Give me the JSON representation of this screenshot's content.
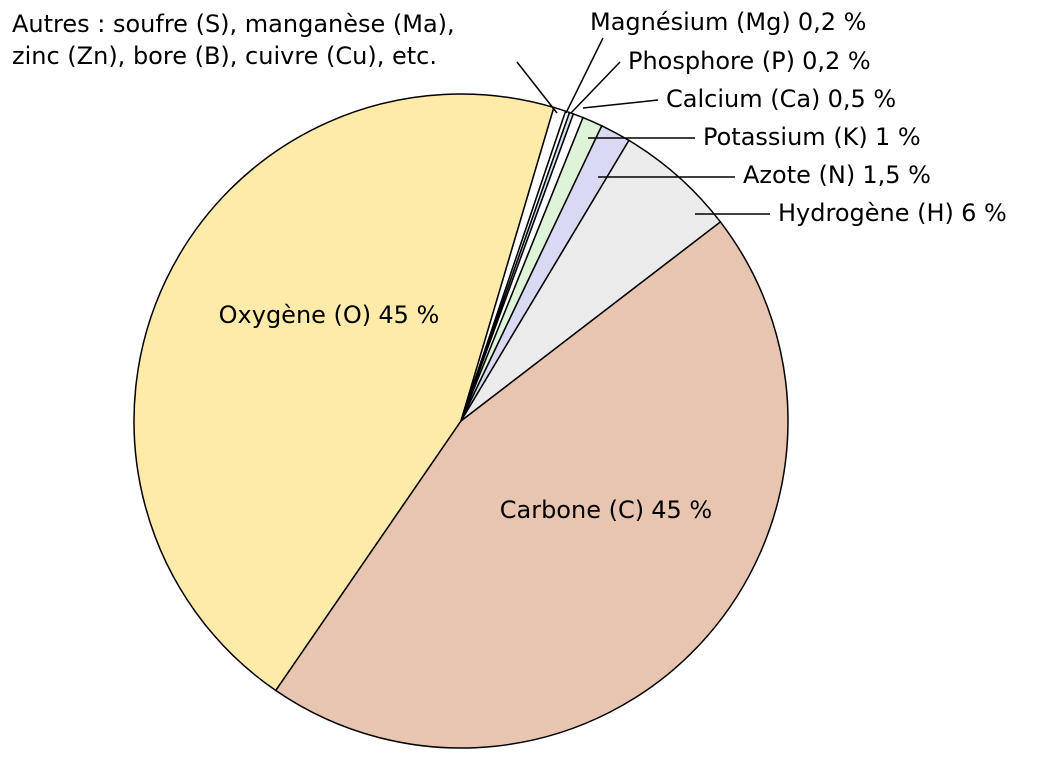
{
  "chart_data": {
    "type": "pie",
    "categories": [
      "Oxygène (O)",
      "Autres : soufre (S), manganèse (Ma),\nzinc (Zn), bore (B), cuivre (Cu), etc.",
      "Magnésium (Mg)",
      "Phosphore (P)",
      "Calcium (Ca)",
      "Potassium (K)",
      "Azote (N)",
      "Hydrogène (H)",
      "Carbone (C)"
    ],
    "values": [
      45,
      0.6,
      0.2,
      0.2,
      0.5,
      1,
      1.5,
      6,
      45
    ],
    "value_labels": [
      "45 %",
      null,
      "0,2 %",
      "0,2 %",
      "0,5 %",
      "1 %",
      "1,5 %",
      "6 %",
      "45 %"
    ],
    "colors": [
      "#feeba9",
      "#ffffff",
      "#ffffff",
      "#d3e2f6",
      "#ffffff",
      "#dff3d8",
      "#d9d9f3",
      "#ebebeb",
      "#e8c5b0"
    ]
  }
}
